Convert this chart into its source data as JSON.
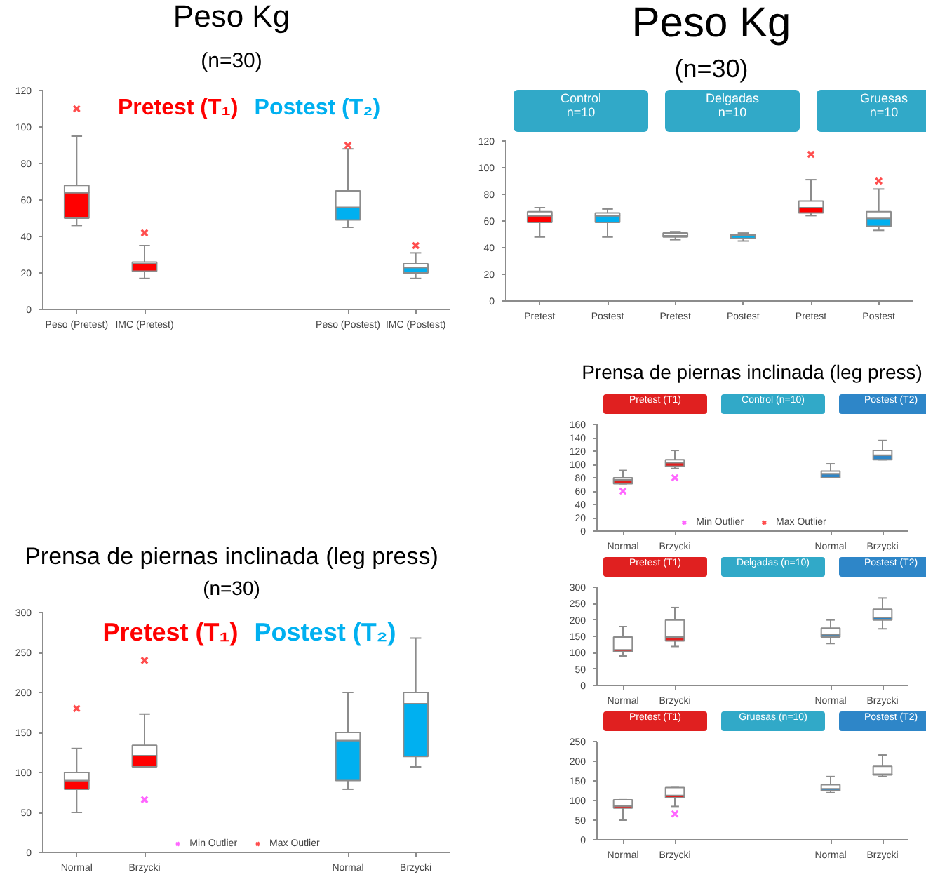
{
  "chart_data": [
    {
      "type": "box",
      "title": "Peso Kg",
      "subtitle": "(n=30)",
      "categories": [
        "Peso (Pretest)",
        "IMC (Pretest)",
        null,
        null,
        "Peso (Postest)",
        "IMC (Postest)"
      ],
      "ylim": [
        0,
        120
      ],
      "yticks": [
        0,
        20,
        40,
        60,
        80,
        100,
        120
      ],
      "annotations": [
        "Pretest (T₁)",
        "Postest (T₂)"
      ],
      "series": [
        {
          "color": "#ff0000",
          "boxes": [
            {
              "low": 46,
              "q1": 50,
              "median": 64,
              "q3": 68,
              "high": 95
            },
            {
              "low": 17,
              "q1": 21,
              "median": 25,
              "q3": 26,
              "high": 35
            },
            null,
            null,
            null,
            null
          ]
        },
        {
          "color": "#00b0f0",
          "boxes": [
            null,
            null,
            null,
            null,
            {
              "low": 45,
              "q1": 49,
              "median": 56,
              "q3": 65,
              "high": 88
            },
            {
              "low": 17,
              "q1": 20,
              "median": 23,
              "q3": 25,
              "high": 31
            }
          ]
        },
        {
          "type": "scatter",
          "color": "#ff4d4d",
          "marker": "cross",
          "values": [
            110,
            42,
            null,
            null,
            90,
            35
          ]
        }
      ]
    },
    {
      "type": "box",
      "title": "Peso Kg",
      "subtitle": "(n=30)",
      "categories": [
        "Pretest",
        "Postest",
        "Pretest",
        "Postest",
        "Pretest",
        "Postest"
      ],
      "ylim": [
        0,
        120
      ],
      "yticks": [
        0,
        20,
        40,
        60,
        80,
        100,
        120
      ],
      "annotations": [
        "Control\nn=10",
        "Delgadas\nn=10",
        "Gruesas\nn=10"
      ],
      "series": [
        {
          "color": "#ff0000",
          "boxes": [
            {
              "low": 48,
              "q1": 59,
              "median": 64,
              "q3": 67,
              "high": 70
            },
            null,
            {
              "low": 46,
              "q1": 48,
              "median": 49,
              "q3": 51,
              "high": 52
            },
            null,
            {
              "low": 64,
              "q1": 66,
              "median": 70,
              "q3": 75,
              "high": 91
            },
            null
          ]
        },
        {
          "color": "#00b0f0",
          "boxes": [
            null,
            {
              "low": 48,
              "q1": 59,
              "median": 64,
              "q3": 66,
              "high": 69
            },
            null,
            {
              "low": 45,
              "q1": 47,
              "median": 49,
              "q3": 50,
              "high": 51
            },
            null,
            {
              "low": 53,
              "q1": 56,
              "median": 62,
              "q3": 67,
              "high": 84
            }
          ]
        },
        {
          "type": "scatter",
          "color": "#ff4d4d",
          "marker": "cross",
          "values": [
            null,
            null,
            null,
            null,
            110,
            90
          ]
        }
      ]
    },
    {
      "type": "box",
      "title": "Prensa de piernas inclinada (leg press)",
      "subtitle": "(n=30)",
      "categories": [
        "Normal",
        "Brzycki",
        null,
        null,
        "Normal",
        "Brzycki"
      ],
      "ylim": [
        0,
        300
      ],
      "yticks": [
        0,
        50,
        100,
        150,
        200,
        250,
        300
      ],
      "annotations": [
        "Pretest (T₁)",
        "Postest (T₂)"
      ],
      "legend": "bottom",
      "series": [
        {
          "color": "#ff0000",
          "boxes": [
            {
              "low": 50,
              "q1": 79,
              "median": 90,
              "q3": 100,
              "high": 130
            },
            {
              "low": 107,
              "q1": 107,
              "median": 121,
              "q3": 134,
              "high": 173
            },
            null,
            null,
            null,
            null
          ]
        },
        {
          "color": "#00b0f0",
          "boxes": [
            null,
            null,
            null,
            null,
            {
              "low": 79,
              "q1": 90,
              "median": 140,
              "q3": 150,
              "high": 200
            },
            {
              "low": 107,
              "q1": 120,
              "median": 186,
              "q3": 200,
              "high": 268
            }
          ]
        },
        {
          "type": "scatter",
          "name": "Min Outlier",
          "color": "#ff66ff",
          "marker": "cross",
          "values": [
            null,
            66,
            null,
            null,
            null,
            null
          ]
        },
        {
          "type": "scatter",
          "name": "Max Outlier",
          "color": "#ff4d4d",
          "marker": "cross",
          "values": [
            180,
            240,
            null,
            null,
            null,
            null
          ]
        }
      ]
    },
    {
      "type": "box",
      "title": "Prensa de piernas inclinada (leg press)",
      "categories": [
        "Normal",
        "Brzycki",
        null,
        null,
        "Normal",
        "Brzycki"
      ],
      "ylim": [
        0,
        160
      ],
      "yticks": [
        0,
        20,
        40,
        60,
        80,
        100,
        120,
        140,
        160
      ],
      "annotations": [
        "Pretest (T1)",
        "Postest (T2)",
        "Control (n=10)"
      ],
      "legend": "bottom",
      "series": [
        {
          "color": "#e02020",
          "boxes": [
            {
              "low": 71,
              "q1": 71,
              "median": 77,
              "q3": 80,
              "high": 91
            },
            {
              "low": 94,
              "q1": 97,
              "median": 103,
              "q3": 107,
              "high": 121
            },
            null,
            null,
            null,
            null
          ]
        },
        {
          "color": "#2e86c8",
          "boxes": [
            null,
            null,
            null,
            null,
            {
              "low": 80,
              "q1": 80,
              "median": 86,
              "q3": 90,
              "high": 101
            },
            {
              "low": 107,
              "q1": 107,
              "median": 114,
              "q3": 121,
              "high": 136
            }
          ]
        },
        {
          "type": "scatter",
          "name": "Min Outlier",
          "color": "#ff66ff",
          "marker": "cross",
          "values": [
            60,
            80,
            null,
            null,
            null,
            null
          ]
        },
        {
          "type": "scatter",
          "name": "Max Outlier",
          "color": "#ff4d4d",
          "marker": "cross",
          "values": [
            null,
            null,
            null,
            null,
            null,
            null
          ]
        }
      ]
    },
    {
      "type": "box",
      "categories": [
        "Normal",
        "Brzycki",
        null,
        null,
        "Normal",
        "Brzycki"
      ],
      "ylim": [
        0,
        300
      ],
      "yticks": [
        0,
        50,
        100,
        150,
        200,
        250,
        300
      ],
      "annotations": [
        "Pretest (T1)",
        "Postest (T2)",
        "Delgadas (n=10)"
      ],
      "series": [
        {
          "color": "#e02020",
          "boxes": [
            {
              "low": 90,
              "q1": 103,
              "median": 109,
              "q3": 148,
              "high": 180
            },
            {
              "low": 119,
              "q1": 136,
              "median": 148,
              "q3": 200,
              "high": 238
            },
            null,
            null,
            null,
            null
          ]
        },
        {
          "color": "#2e86c8",
          "boxes": [
            null,
            null,
            null,
            null,
            {
              "low": 128,
              "q1": 148,
              "median": 156,
              "q3": 175,
              "high": 200
            },
            {
              "low": 173,
              "q1": 200,
              "median": 208,
              "q3": 233,
              "high": 267
            }
          ]
        }
      ]
    },
    {
      "type": "box",
      "categories": [
        "Normal",
        "Brzycki",
        null,
        null,
        "Normal",
        "Brzycki"
      ],
      "ylim": [
        0,
        250
      ],
      "yticks": [
        0,
        50,
        100,
        150,
        200,
        250
      ],
      "annotations": [
        "Pretest (T1)",
        "Postest (T2)",
        "Gruesas (n=10)"
      ],
      "series": [
        {
          "color": "#e02020",
          "boxes": [
            {
              "low": 50,
              "q1": 81,
              "median": 86,
              "q3": 102,
              "high": 102
            },
            {
              "low": 85,
              "q1": 107,
              "median": 113,
              "q3": 133,
              "high": 133
            },
            null,
            null,
            null,
            null
          ]
        },
        {
          "color": "#2e86c8",
          "boxes": [
            null,
            null,
            null,
            null,
            {
              "low": 120,
              "q1": 125,
              "median": 130,
              "q3": 140,
              "high": 161
            },
            {
              "low": 161,
              "q1": 165,
              "median": 167,
              "q3": 187,
              "high": 216
            }
          ]
        },
        {
          "type": "scatter",
          "color": "#ff66ff",
          "marker": "cross",
          "values": [
            null,
            66,
            null,
            null,
            null,
            null
          ]
        }
      ]
    }
  ]
}
